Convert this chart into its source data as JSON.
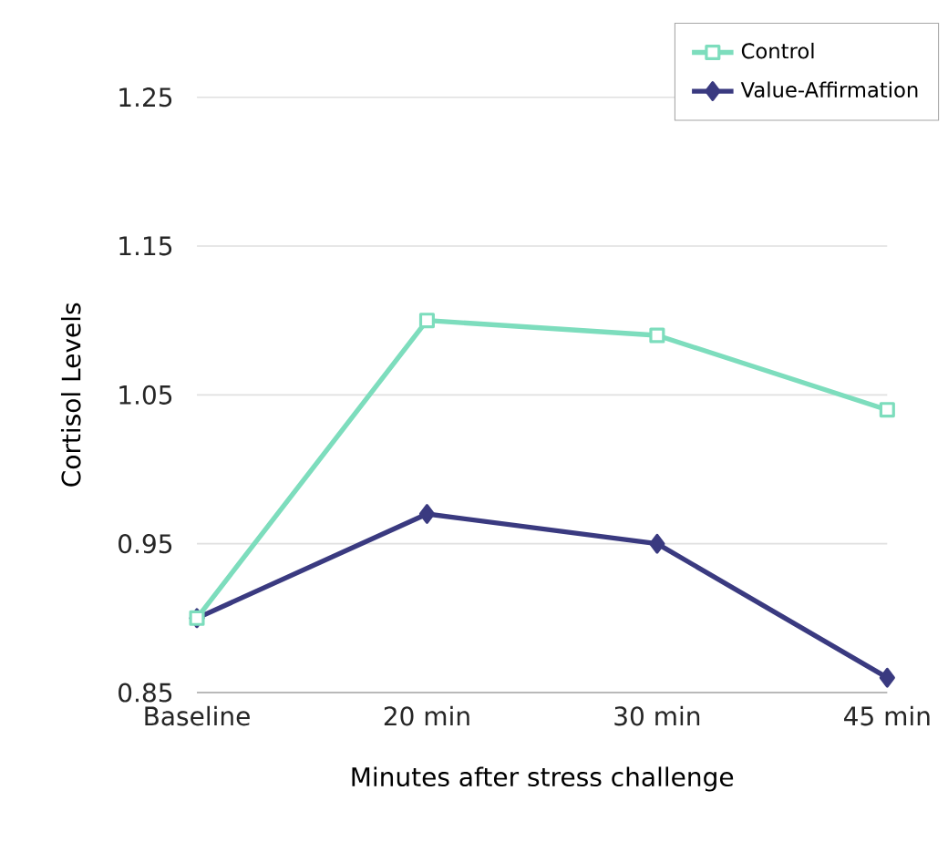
{
  "chart_data": {
    "type": "line",
    "xlabel": "Minutes after stress challenge",
    "ylabel": "Cortisol Levels",
    "categories": [
      "Baseline",
      "20 min",
      "30 min",
      "45 min"
    ],
    "series": [
      {
        "name": "Control",
        "color": "#7dddbd",
        "marker": "square",
        "values": [
          0.9,
          1.1,
          1.09,
          1.04
        ]
      },
      {
        "name": "Value-Affirmation",
        "color": "#3a3a80",
        "marker": "diamond",
        "values": [
          0.9,
          0.97,
          0.95,
          0.86
        ]
      }
    ],
    "ylim": [
      0.85,
      1.25
    ],
    "yticks": [
      0.85,
      0.95,
      1.05,
      1.15,
      1.25
    ],
    "grid": "y",
    "legend": "top right",
    "line_style": "solid"
  }
}
